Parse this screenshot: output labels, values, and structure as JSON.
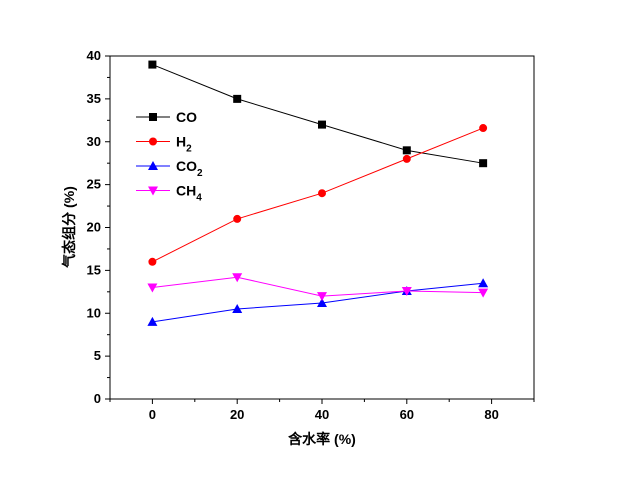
{
  "chart_data": {
    "type": "line",
    "title": "",
    "xlabel": "含水率 (%)",
    "ylabel": "气态组分 (%)",
    "x": [
      0,
      20,
      40,
      60,
      78
    ],
    "xlim": [
      -10,
      90
    ],
    "ylim": [
      0,
      40
    ],
    "xticks": [
      "0",
      "20",
      "40",
      "60",
      "80"
    ],
    "yticks": [
      "0",
      "5",
      "10",
      "15",
      "20",
      "25",
      "30",
      "35",
      "40"
    ],
    "grid": false,
    "legend_position": "top-left",
    "series": [
      {
        "name": "CO",
        "base": "CO",
        "sub": "",
        "color": "#000000",
        "marker": "square",
        "values": [
          39,
          35,
          32,
          29,
          27.5
        ]
      },
      {
        "name": "H2",
        "base": "H",
        "sub": "2",
        "color": "#ff0000",
        "marker": "circle",
        "values": [
          16,
          21,
          24,
          28,
          31.6
        ]
      },
      {
        "name": "CO2",
        "base": "CO",
        "sub": "2",
        "color": "#0000ff",
        "marker": "triangle-up",
        "values": [
          9,
          10.5,
          11.2,
          12.6,
          13.5
        ]
      },
      {
        "name": "CH4",
        "base": "CH",
        "sub": "4",
        "color": "#ff00ff",
        "marker": "triangle-down",
        "values": [
          13,
          14.2,
          12,
          12.6,
          12.4
        ]
      }
    ]
  }
}
